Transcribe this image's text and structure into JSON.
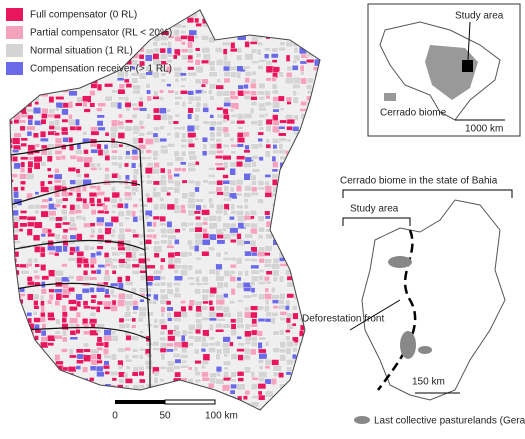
{
  "legend": {
    "items": [
      {
        "label": "Full compensator (0 RL)",
        "color": "#e8175d"
      },
      {
        "label": "Partial compensator (RL < 20%)",
        "color": "#f5a3bd"
      },
      {
        "label": "Normal situation (1 RL)",
        "color": "#d4d4d4"
      },
      {
        "label": "Compensation receiver (> 1 RL)",
        "color": "#6a6ae8"
      }
    ]
  },
  "scale_bar": {
    "labels": [
      "0",
      "50",
      "100 km"
    ]
  },
  "inset_brazil": {
    "title": "Study area",
    "legend": "Cerrado biome",
    "scale": "1000 km"
  },
  "inset_bahia": {
    "title": "Cerrado biome in the state of Bahia",
    "study_area": "Study area",
    "front_label": "Deforestation front",
    "scale": "150 km",
    "legend": "Last collective pasturelands (Gerais)"
  }
}
